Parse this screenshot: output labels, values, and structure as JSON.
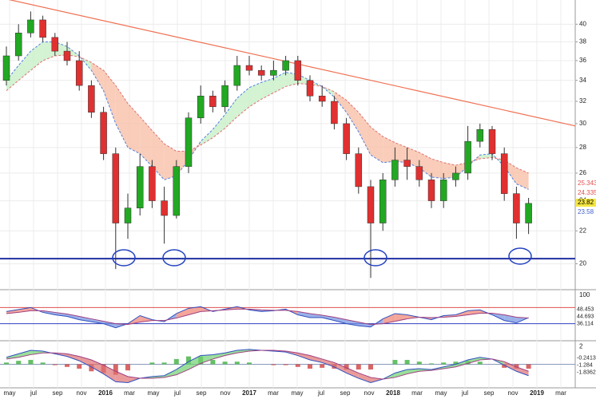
{
  "chart_data": {
    "type": "candlestick",
    "log_scale": true,
    "grid": true,
    "xticks": [
      "may",
      "jul",
      "sep",
      "nov",
      "2016",
      "mar",
      "may",
      "jul",
      "sep",
      "nov",
      "2017",
      "mar",
      "may",
      "jul",
      "sep",
      "nov",
      "2018",
      "mar",
      "may",
      "jul",
      "sep",
      "nov",
      "2019",
      "mar"
    ],
    "ylim": [
      18.6,
      42.9
    ],
    "yticks": [
      20,
      22,
      24,
      26,
      28,
      30,
      32,
      34,
      36,
      38,
      40
    ],
    "up_color": "#22a822",
    "down_color": "#e03030",
    "open": [
      34,
      36.5,
      39,
      40.5,
      38.5,
      37,
      36,
      33.5,
      31,
      27.5,
      22.5,
      23.5,
      26.5,
      24,
      23,
      26.5,
      30.5,
      32.5,
      31.5,
      33.5,
      35.5,
      35,
      34.5,
      35,
      36,
      34,
      32.5,
      32,
      30,
      27.5,
      25,
      22.5,
      25.5,
      27,
      26.5,
      25.5,
      24,
      25.5,
      26,
      28.5,
      29.5,
      27.5,
      24.5,
      22.5
    ],
    "high": [
      37.5,
      40,
      41.5,
      41,
      39,
      38,
      37,
      34,
      31.5,
      28,
      24.5,
      27.5,
      27,
      25,
      27,
      31,
      33.5,
      33,
      34,
      36.5,
      36.5,
      35.5,
      36,
      36.5,
      36.5,
      34.5,
      33.5,
      32.5,
      30.5,
      28,
      25.5,
      26,
      28,
      28,
      27,
      26,
      26,
      26.5,
      29.8,
      30,
      29.8,
      28,
      25,
      24.2
    ],
    "low": [
      33.5,
      36,
      38.5,
      38,
      36.5,
      35.5,
      33,
      30.5,
      27,
      19.7,
      21.5,
      23,
      23.5,
      21.2,
      22.8,
      26,
      30,
      31,
      31,
      33,
      34.5,
      34,
      34,
      34.5,
      33.5,
      32,
      31.5,
      29.5,
      27,
      24.5,
      19.2,
      22,
      25,
      25.5,
      25,
      23.5,
      23.5,
      25,
      25.5,
      28,
      27,
      24,
      21.5,
      21.8
    ],
    "close": [
      36.5,
      39,
      40.5,
      38.5,
      37,
      36,
      33.5,
      31,
      27.5,
      22.5,
      23.5,
      26.5,
      24,
      23,
      26.5,
      30.5,
      32.5,
      31.5,
      33.5,
      35.5,
      35,
      34.5,
      35,
      36,
      34,
      32.5,
      32,
      30,
      27.5,
      25,
      22.5,
      25.5,
      27,
      26.5,
      25.5,
      24,
      25.5,
      26,
      28.5,
      29.5,
      27.5,
      24.5,
      22.5,
      23.82
    ],
    "ma_fast": [
      34,
      35.5,
      37,
      38,
      38,
      37.5,
      36.5,
      35,
      33,
      30,
      28,
      27.5,
      26.5,
      25.5,
      25.8,
      27,
      28.5,
      29.5,
      30.8,
      32.3,
      33.3,
      33.8,
      34.2,
      34.8,
      34.6,
      34,
      33.4,
      32.4,
      31,
      29.3,
      27.4,
      26.8,
      26.9,
      26.8,
      26.4,
      25.7,
      25.6,
      25.7,
      26.5,
      27.4,
      27.5,
      26.5,
      25.2,
      24.8
    ],
    "ma_slow": [
      33,
      34,
      35,
      36,
      36.5,
      36.6,
      36.4,
      35.8,
      35,
      33.5,
      31.8,
      30.6,
      29.4,
      28.3,
      27.7,
      27.7,
      28.2,
      28.8,
      29.6,
      30.6,
      31.5,
      32.2,
      32.8,
      33.4,
      33.7,
      33.6,
      33.4,
      32.9,
      32.1,
      31,
      29.7,
      28.9,
      28.4,
      28,
      27.6,
      27.1,
      26.8,
      26.6,
      26.8,
      27.1,
      27.2,
      27,
      26.4,
      26
    ],
    "trendline": [
      43.2,
      29.8
    ],
    "support": 20.3,
    "price_labels": [
      {
        "text": "25.343",
        "color": "#e05050",
        "bg": "#ffffff"
      },
      {
        "text": "24.335",
        "color": "#e05050",
        "bg": "#ffffff"
      },
      {
        "text": "23.82",
        "color": "#000000",
        "bg": "#f5e642"
      },
      {
        "text": "23.58",
        "color": "#4060d0",
        "bg": "#ffffff"
      }
    ],
    "rsi": {
      "ylim": [
        -10,
        110
      ],
      "yticks": [
        100
      ],
      "levels": [
        70,
        30
      ],
      "level_colors": [
        "#e05050",
        "#3040c0"
      ],
      "values": [
        60,
        65,
        70,
        58,
        52,
        48,
        40,
        35,
        30,
        20,
        30,
        50,
        40,
        35,
        55,
        68,
        72,
        60,
        66,
        72,
        64,
        60,
        62,
        66,
        52,
        45,
        45,
        38,
        30,
        25,
        22,
        42,
        55,
        52,
        46,
        40,
        50,
        52,
        62,
        64,
        52,
        38,
        32,
        45
      ],
      "signal": [
        55,
        58,
        62,
        62,
        58,
        54,
        48,
        42,
        36,
        30,
        28,
        34,
        38,
        38,
        44,
        52,
        60,
        62,
        64,
        66,
        66,
        64,
        63,
        63,
        60,
        55,
        51,
        46,
        40,
        34,
        28,
        30,
        36,
        42,
        46,
        45,
        46,
        48,
        52,
        56,
        56,
        52,
        46,
        44
      ],
      "labels": [
        "48.453",
        "44.693",
        "36.114"
      ]
    },
    "macd": {
      "ylim": [
        -2.6,
        2.6
      ],
      "yticks": [
        2
      ],
      "levels": [
        0
      ],
      "values": [
        0.8,
        1.2,
        1.6,
        1.5,
        1.2,
        0.9,
        0.4,
        -0.3,
        -1.1,
        -2,
        -2.1,
        -1.6,
        -1.4,
        -1.3,
        -0.6,
        0.3,
        1,
        1.1,
        1.3,
        1.6,
        1.7,
        1.6,
        1.5,
        1.4,
        1,
        0.5,
        0.2,
        -0.3,
        -1,
        -1.6,
        -2.1,
        -1.7,
        -1,
        -0.6,
        -0.5,
        -0.6,
        -0.3,
        0,
        0.5,
        0.8,
        0.6,
        -0.1,
        -0.8,
        -1.3
      ],
      "signal": [
        0.6,
        0.8,
        1.1,
        1.3,
        1.3,
        1.2,
        0.9,
        0.5,
        -0.1,
        -0.8,
        -1.4,
        -1.6,
        -1.6,
        -1.5,
        -1.2,
        -0.6,
        0.1,
        0.6,
        1,
        1.3,
        1.5,
        1.6,
        1.6,
        1.5,
        1.3,
        1,
        0.6,
        0.2,
        -0.4,
        -1,
        -1.5,
        -1.7,
        -1.5,
        -1.1,
        -0.8,
        -0.7,
        -0.5,
        -0.3,
        0.1,
        0.5,
        0.6,
        0.3,
        -0.3,
        -0.8
      ],
      "histogram": [
        0.2,
        0.4,
        0.5,
        0.2,
        -0.1,
        -0.3,
        -0.5,
        -0.8,
        -1,
        -1.2,
        -0.7,
        0,
        0.2,
        0.2,
        0.6,
        0.9,
        0.9,
        0.5,
        0.3,
        0.3,
        0.2,
        0,
        -0.1,
        -0.1,
        -0.3,
        -0.5,
        -0.4,
        -0.5,
        -0.6,
        -0.6,
        -0.6,
        0,
        0.5,
        0.5,
        0.3,
        0.1,
        0.2,
        0.3,
        0.4,
        0.3,
        0,
        -0.4,
        -0.5,
        -0.5
      ],
      "labels": [
        "-0.2413",
        "-1.284",
        "-1.8362"
      ]
    }
  }
}
